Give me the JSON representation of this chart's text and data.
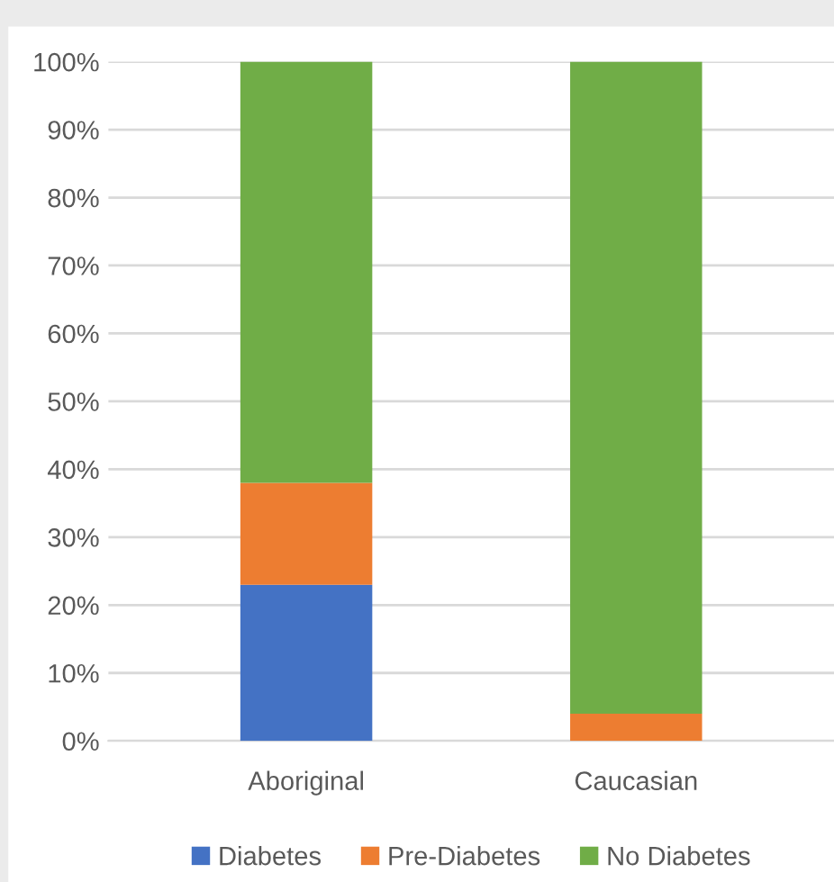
{
  "chart_data": {
    "type": "bar",
    "stacked": true,
    "categories": [
      "Aboriginal",
      "Caucasian"
    ],
    "series": [
      {
        "name": "Diabetes",
        "color": "#4472c4",
        "values": [
          23,
          0
        ]
      },
      {
        "name": "Pre-Diabetes",
        "color": "#ed7d31",
        "values": [
          15,
          4
        ]
      },
      {
        "name": "No Diabetes",
        "color": "#70ad47",
        "values": [
          62,
          96
        ]
      }
    ],
    "ylim": [
      0,
      100
    ],
    "yticks": [
      {
        "value": 0,
        "label": "0%"
      },
      {
        "value": 10,
        "label": "10%"
      },
      {
        "value": 20,
        "label": "20%"
      },
      {
        "value": 30,
        "label": "30%"
      },
      {
        "value": 40,
        "label": "40%"
      },
      {
        "value": 50,
        "label": "50%"
      },
      {
        "value": 60,
        "label": "60%"
      },
      {
        "value": 70,
        "label": "70%"
      },
      {
        "value": 80,
        "label": "80%"
      },
      {
        "value": 90,
        "label": "90%"
      },
      {
        "value": 100,
        "label": "100%"
      }
    ],
    "grid": "y",
    "legend": "bottom"
  }
}
